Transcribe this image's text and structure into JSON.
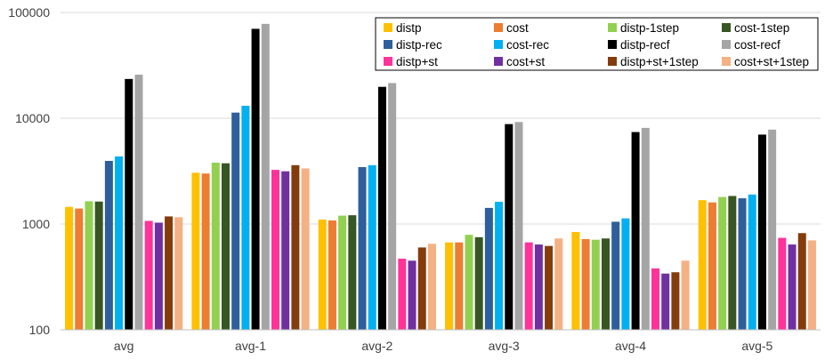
{
  "chart_data": {
    "type": "bar",
    "y_scale": "log",
    "ylim": [
      100,
      100000
    ],
    "y_ticks": [
      "100",
      "1000",
      "10000",
      "100000"
    ],
    "grid": "horizontal",
    "legend_position": "top-right",
    "categories": [
      "avg",
      "avg-1",
      "avg-2",
      "avg-3",
      "avg-4",
      "avg-5"
    ],
    "series": [
      {
        "name": "distp",
        "color": "#FFC000",
        "values": [
          1450,
          3050,
          1100,
          670,
          840,
          1680
        ]
      },
      {
        "name": "cost",
        "color": "#ED7D31",
        "values": [
          1400,
          3000,
          1080,
          670,
          720,
          1600
        ]
      },
      {
        "name": "distp-1step",
        "color": "#92D050",
        "values": [
          1640,
          3800,
          1200,
          790,
          710,
          1800
        ]
      },
      {
        "name": "cost-1step",
        "color": "#375623",
        "values": [
          1630,
          3750,
          1210,
          750,
          730,
          1840
        ]
      },
      {
        "name": "distp-rec",
        "color": "#2E5E9B",
        "values": [
          3950,
          11300,
          3450,
          1420,
          1050,
          1750
        ]
      },
      {
        "name": "cost-rec",
        "color": "#00B0F0",
        "values": [
          4350,
          13100,
          3600,
          1620,
          1130,
          1900
        ]
      },
      {
        "name": "distp-recf",
        "color": "#000000",
        "values": [
          23500,
          70000,
          19800,
          8800,
          7400,
          7000
        ]
      },
      {
        "name": "cost-recf",
        "color": "#A5A5A5",
        "values": [
          25800,
          78000,
          21500,
          9200,
          8100,
          7800
        ]
      },
      {
        "name": "distp+st",
        "color": "#FF3399",
        "values": [
          1070,
          3250,
          470,
          670,
          380,
          740
        ]
      },
      {
        "name": "cost+st",
        "color": "#7030A0",
        "values": [
          1030,
          3150,
          450,
          640,
          340,
          640
        ]
      },
      {
        "name": "distp+st+1step",
        "color": "#843C0C",
        "values": [
          1180,
          3600,
          600,
          620,
          350,
          820
        ]
      },
      {
        "name": "cost+st+1step",
        "color": "#F4B183",
        "values": [
          1160,
          3350,
          650,
          730,
          450,
          700
        ]
      }
    ]
  }
}
